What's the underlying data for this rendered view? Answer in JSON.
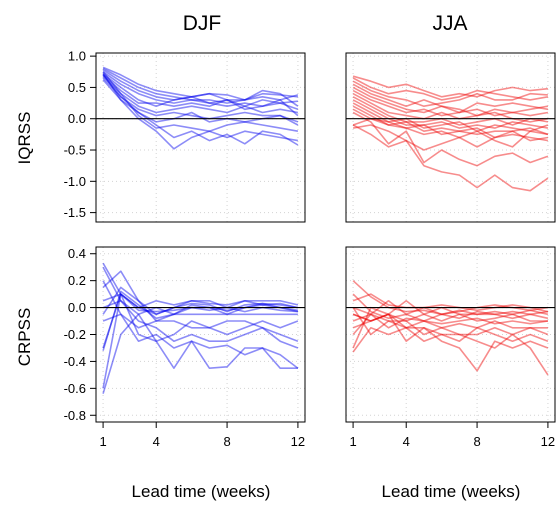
{
  "chart_data": {
    "type": "line",
    "columns": [
      "DJF",
      "JJA"
    ],
    "rows": [
      "IQRSS",
      "CRPSS"
    ],
    "xlabel": "Lead time (weeks)",
    "x": [
      1,
      2,
      3,
      4,
      5,
      6,
      7,
      8,
      9,
      10,
      11,
      12
    ],
    "xticks": [
      1,
      4,
      8,
      12
    ],
    "grid": true,
    "reference_line_y": 0,
    "colors": {
      "DJF": "#0000ee",
      "JJA": "#ee0000"
    },
    "rows_config": [
      {
        "ylabel": "IQRSS",
        "ylim": [
          -1.65,
          1.05
        ],
        "yticks": [
          1.0,
          0.5,
          0.0,
          -0.5,
          -1.0,
          -1.5
        ],
        "ytick_labels": [
          "1.0",
          "0.5",
          "0.0",
          "-0.5",
          "-1.0",
          "-1.5"
        ]
      },
      {
        "ylabel": "CRPSS",
        "ylim": [
          -0.85,
          0.45
        ],
        "yticks": [
          0.4,
          0.2,
          0.0,
          -0.2,
          -0.4,
          -0.6,
          -0.8
        ],
        "ytick_labels": [
          "0.4",
          "0.2",
          "0.0",
          "-0.2",
          "-0.4",
          "-0.6",
          "-0.8"
        ]
      }
    ],
    "panels": [
      {
        "column": "DJF",
        "row": "IQRSS",
        "series": [
          [
            0.82,
            0.7,
            0.55,
            0.45,
            0.4,
            0.35,
            0.4,
            0.38,
            0.3,
            0.4,
            0.38,
            0.35
          ],
          [
            0.8,
            0.65,
            0.5,
            0.4,
            0.35,
            0.3,
            0.25,
            0.3,
            0.3,
            0.35,
            0.3,
            0.38
          ],
          [
            0.78,
            0.6,
            0.45,
            0.35,
            0.3,
            0.35,
            0.4,
            0.3,
            0.2,
            0.3,
            0.25,
            0.28
          ],
          [
            0.75,
            0.55,
            0.4,
            0.3,
            0.25,
            0.3,
            0.3,
            0.25,
            0.3,
            0.45,
            0.4,
            0.2
          ],
          [
            0.72,
            0.5,
            0.3,
            0.2,
            0.3,
            0.35,
            0.25,
            0.2,
            0.25,
            0.2,
            0.25,
            0.15
          ],
          [
            0.7,
            0.45,
            0.25,
            0.25,
            0.2,
            0.25,
            0.2,
            0.3,
            0.15,
            0.2,
            0.3,
            0.05
          ],
          [
            0.68,
            0.4,
            0.2,
            0.1,
            0.15,
            0.2,
            0.15,
            0.1,
            0.2,
            0.1,
            0.15,
            0.1
          ],
          [
            0.65,
            0.35,
            0.15,
            0.05,
            0.1,
            0.05,
            0.0,
            0.05,
            0.1,
            0.05,
            0.05,
            -0.1
          ],
          [
            0.62,
            0.3,
            0.1,
            -0.05,
            0.0,
            0.1,
            -0.05,
            0.0,
            -0.05,
            0.0,
            0.05,
            -0.05
          ],
          [
            0.75,
            0.4,
            0.05,
            -0.15,
            -0.1,
            -0.15,
            -0.2,
            -0.1,
            -0.05,
            -0.1,
            -0.15,
            -0.2
          ],
          [
            0.72,
            0.3,
            0.0,
            -0.2,
            -0.48,
            -0.3,
            -0.2,
            -0.3,
            -0.2,
            -0.25,
            -0.3,
            -0.35
          ],
          [
            0.7,
            0.35,
            0.1,
            -0.1,
            -0.3,
            -0.2,
            -0.35,
            -0.25,
            -0.4,
            -0.2,
            -0.25,
            -0.42
          ]
        ]
      },
      {
        "column": "JJA",
        "row": "IQRSS",
        "series": [
          [
            0.68,
            0.6,
            0.5,
            0.55,
            0.45,
            0.35,
            0.4,
            0.35,
            0.45,
            0.5,
            0.45,
            0.48
          ],
          [
            0.65,
            0.5,
            0.4,
            0.45,
            0.4,
            0.3,
            0.35,
            0.45,
            0.4,
            0.35,
            0.3,
            0.35
          ],
          [
            0.6,
            0.45,
            0.35,
            0.3,
            0.2,
            0.25,
            0.3,
            0.4,
            0.3,
            0.3,
            0.4,
            0.38
          ],
          [
            0.55,
            0.4,
            0.3,
            0.2,
            0.3,
            0.2,
            0.1,
            0.25,
            0.2,
            0.25,
            0.2,
            0.15
          ],
          [
            0.5,
            0.35,
            0.25,
            0.15,
            0.1,
            0.2,
            0.15,
            0.05,
            0.15,
            0.1,
            0.15,
            0.2
          ],
          [
            0.45,
            0.3,
            0.2,
            0.1,
            0.15,
            0.05,
            0.1,
            0.15,
            0.05,
            0.1,
            0.05,
            0.1
          ],
          [
            0.4,
            0.25,
            0.1,
            0.05,
            0.0,
            0.1,
            0.0,
            0.05,
            0.1,
            0.0,
            -0.05,
            0.0
          ],
          [
            0.35,
            0.2,
            0.05,
            -0.05,
            -0.05,
            0.0,
            -0.1,
            -0.05,
            0.0,
            -0.1,
            0.0,
            -0.05
          ],
          [
            0.3,
            0.15,
            0.0,
            -0.1,
            -0.1,
            -0.05,
            -0.15,
            -0.1,
            -0.15,
            -0.05,
            -0.1,
            -0.15
          ],
          [
            0.25,
            0.1,
            -0.05,
            0.0,
            -0.15,
            -0.1,
            -0.05,
            -0.2,
            -0.1,
            -0.15,
            -0.2,
            -0.1
          ],
          [
            0.2,
            0.05,
            -0.1,
            -0.05,
            -0.2,
            -0.15,
            -0.2,
            -0.25,
            -0.2,
            -0.2,
            -0.15,
            -0.25
          ],
          [
            -0.1,
            0.0,
            -0.1,
            -0.15,
            -0.1,
            -0.25,
            -0.2,
            -0.15,
            -0.3,
            -0.25,
            -0.3,
            -0.35
          ],
          [
            0.15,
            0.0,
            -0.05,
            -0.15,
            -0.25,
            -0.2,
            -0.3,
            -0.45,
            -0.3,
            -0.2,
            -0.35,
            -0.3
          ],
          [
            -0.15,
            -0.1,
            -0.2,
            -0.35,
            -0.5,
            -0.4,
            -0.3,
            -0.2,
            -0.35,
            -0.45,
            -0.2,
            -0.25
          ],
          [
            0.1,
            -0.05,
            -0.4,
            -0.2,
            -0.7,
            -0.5,
            -0.65,
            -0.75,
            -0.6,
            -0.55,
            -0.7,
            -0.6
          ],
          [
            -0.1,
            -0.25,
            -0.45,
            -0.35,
            -0.75,
            -0.85,
            -0.9,
            -1.1,
            -0.9,
            -1.1,
            -1.15,
            -0.95
          ]
        ]
      },
      {
        "column": "DJF",
        "row": "CRPSS",
        "series": [
          [
            -0.05,
            0.15,
            0.05,
            -0.05,
            0.0,
            0.05,
            0.05,
            0.0,
            0.05,
            0.05,
            0.05,
            0.02
          ],
          [
            -0.3,
            0.1,
            0.0,
            -0.05,
            0.0,
            0.03,
            0.02,
            -0.03,
            0.02,
            0.03,
            0.02,
            0.0
          ],
          [
            -0.32,
            0.12,
            0.02,
            -0.08,
            -0.05,
            0.02,
            0.0,
            -0.05,
            0.0,
            0.02,
            0.0,
            -0.02
          ],
          [
            -0.6,
            0.1,
            -0.02,
            -0.03,
            -0.02,
            0.0,
            -0.02,
            0.0,
            -0.03,
            0.0,
            -0.02,
            -0.03
          ],
          [
            0.33,
            0.1,
            0.0,
            0.05,
            0.02,
            0.05,
            0.03,
            0.02,
            0.05,
            0.02,
            0.03,
            0.0
          ],
          [
            0.3,
            0.05,
            -0.05,
            0.0,
            -0.05,
            0.0,
            0.0,
            -0.02,
            0.0,
            0.03,
            0.0,
            -0.03
          ],
          [
            0.2,
            -0.05,
            -0.15,
            -0.1,
            -0.05,
            -0.05,
            -0.05,
            -0.05,
            -0.05,
            -0.05,
            -0.05,
            -0.05
          ],
          [
            0.15,
            0.27,
            0.05,
            -0.1,
            -0.1,
            -0.15,
            -0.15,
            -0.2,
            -0.15,
            -0.1,
            -0.15,
            -0.1
          ],
          [
            0.05,
            0.1,
            -0.2,
            -0.25,
            -0.2,
            -0.1,
            -0.15,
            -0.1,
            -0.1,
            -0.15,
            -0.2,
            -0.25
          ],
          [
            0.0,
            0.05,
            -0.1,
            -0.15,
            -0.25,
            -0.2,
            -0.25,
            -0.25,
            -0.2,
            -0.15,
            -0.25,
            -0.3
          ],
          [
            -0.1,
            -0.05,
            -0.25,
            -0.2,
            -0.3,
            -0.25,
            -0.3,
            -0.28,
            -0.35,
            -0.3,
            -0.35,
            -0.45
          ],
          [
            -0.64,
            -0.2,
            -0.05,
            -0.25,
            -0.45,
            -0.25,
            -0.45,
            -0.44,
            -0.3,
            -0.3,
            -0.45,
            -0.45
          ]
        ]
      },
      {
        "column": "JJA",
        "row": "CRPSS",
        "series": [
          [
            0.2,
            0.08,
            0.0,
            -0.03,
            -0.02,
            -0.05,
            -0.03,
            0.0,
            0.02,
            0.0,
            -0.02,
            0.0
          ],
          [
            0.05,
            0.1,
            0.02,
            0.0,
            0.0,
            0.02,
            0.0,
            -0.02,
            0.0,
            0.02,
            0.0,
            -0.03
          ],
          [
            -0.3,
            0.0,
            -0.05,
            0.05,
            -0.05,
            0.0,
            -0.05,
            -0.05,
            -0.03,
            -0.05,
            -0.02,
            -0.05
          ],
          [
            -0.1,
            -0.05,
            0.05,
            -0.05,
            0.0,
            -0.05,
            -0.02,
            -0.05,
            -0.05,
            -0.03,
            -0.05,
            -0.03
          ],
          [
            0.1,
            -0.03,
            -0.08,
            -0.05,
            -0.1,
            -0.05,
            -0.08,
            -0.03,
            -0.05,
            -0.08,
            -0.05,
            -0.08
          ],
          [
            -0.05,
            -0.1,
            -0.05,
            -0.1,
            -0.05,
            -0.1,
            -0.05,
            -0.1,
            -0.08,
            -0.05,
            -0.1,
            -0.1
          ],
          [
            0.0,
            -0.05,
            -0.15,
            -0.08,
            -0.1,
            -0.12,
            -0.1,
            -0.08,
            -0.12,
            -0.1,
            -0.12,
            -0.1
          ],
          [
            -0.15,
            -0.1,
            -0.05,
            -0.15,
            -0.1,
            -0.15,
            -0.12,
            -0.15,
            -0.1,
            -0.15,
            -0.15,
            -0.2
          ],
          [
            -0.2,
            -0.05,
            -0.1,
            -0.1,
            -0.2,
            -0.15,
            -0.2,
            -0.2,
            -0.15,
            -0.2,
            -0.15,
            -0.15
          ],
          [
            0.0,
            -0.2,
            -0.1,
            -0.15,
            -0.15,
            -0.2,
            -0.25,
            -0.15,
            -0.2,
            -0.25,
            -0.2,
            -0.25
          ],
          [
            -0.33,
            -0.15,
            -0.2,
            -0.15,
            -0.25,
            -0.2,
            -0.2,
            -0.25,
            -0.3,
            -0.2,
            -0.3,
            -0.5
          ],
          [
            -0.05,
            -0.1,
            -0.05,
            -0.25,
            -0.15,
            -0.25,
            -0.3,
            -0.47,
            -0.25,
            -0.3,
            -0.25,
            -0.3
          ]
        ]
      }
    ]
  },
  "labels": {
    "col_djf": "DJF",
    "col_jja": "JJA",
    "row_iqrss": "IQRSS",
    "row_crpss": "CRPSS",
    "xlabel_left": "Lead time (weeks)",
    "xlabel_right": "Lead time (weeks)"
  }
}
